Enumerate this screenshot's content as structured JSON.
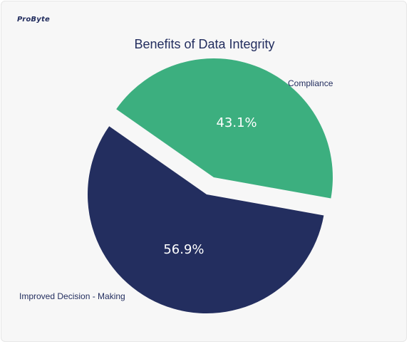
{
  "brand": {
    "logo_text": "ProByte"
  },
  "chart_data": {
    "type": "pie",
    "title": "Benefits of Data Integrity",
    "slices": [
      {
        "name": "Compliance",
        "value": 43.1,
        "label": "43.1%",
        "color": "#3caf7f",
        "exploded": true
      },
      {
        "name": "Improved Decision - Making",
        "value": 56.9,
        "label": "56.9%",
        "color": "#232e5f",
        "exploded": false
      }
    ]
  }
}
